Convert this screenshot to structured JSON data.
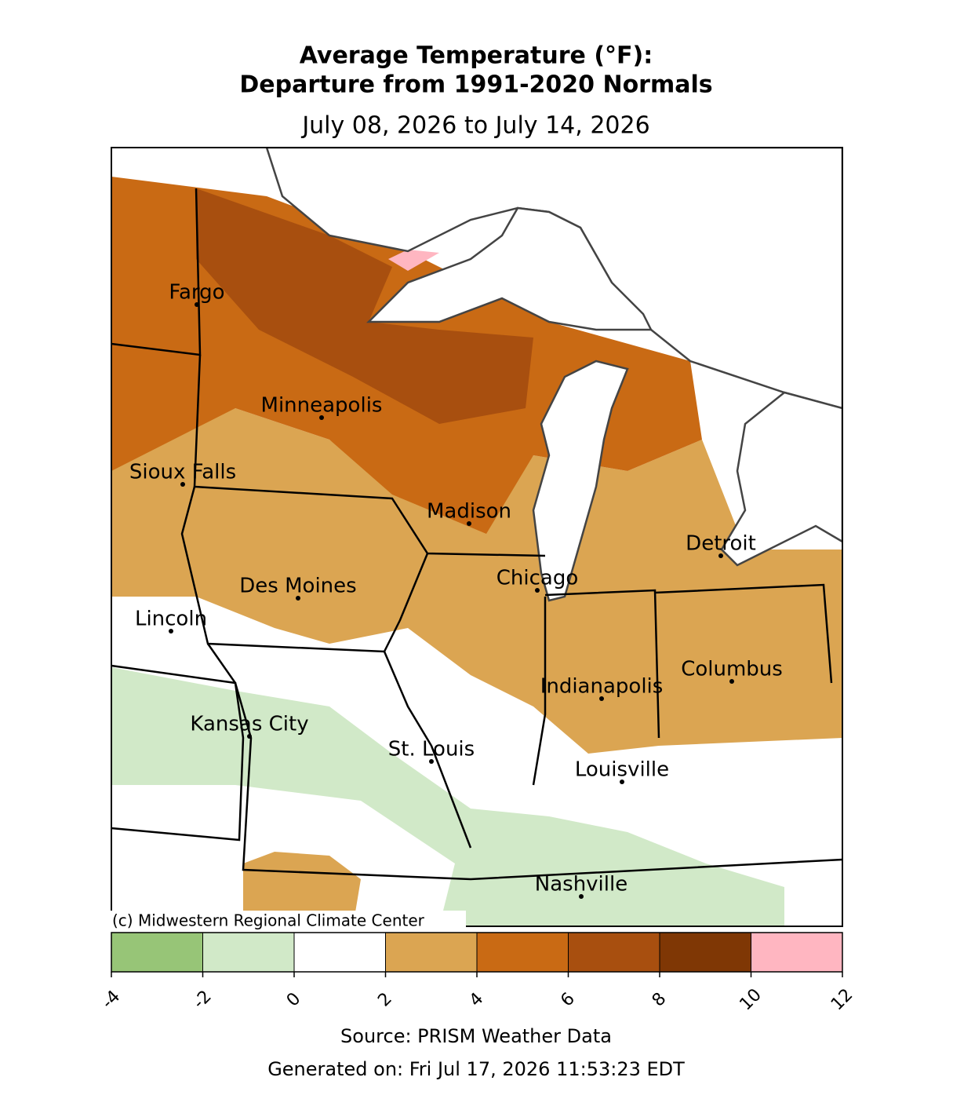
{
  "map": {
    "title": [
      "Average Temperature (°F):",
      "Departure from 1991-2020 Normals"
    ],
    "subtitle": "July 08, 2026 to July 14, 2026",
    "cities": [
      "Fargo",
      "Minneapolis",
      "Sioux Falls",
      "Madison",
      "Detroit",
      "Chicago",
      "Des Moines",
      "Lincoln",
      "Columbus",
      "Indianapolis",
      "Kansas City",
      "St. Louis",
      "Louisville",
      "Nashville"
    ],
    "credit": "(c) Midwestern Regional Climate Center",
    "colorbar": {
      "ticks": [
        -4,
        -2,
        0,
        2,
        4,
        6,
        8,
        10,
        12
      ],
      "colors": [
        "#97c577",
        "#d1e9c8",
        "#ffffff",
        "#dba552",
        "#c96a14",
        "#a84f0f",
        "#7f3705",
        "#ffb6c1"
      ]
    },
    "source": "Source: PRISM Weather Data",
    "generated": "Generated on: Fri Jul 17, 2026 11:53:23 EDT"
  }
}
